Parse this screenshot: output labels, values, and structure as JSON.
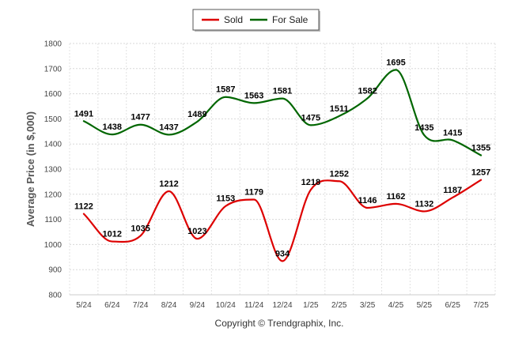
{
  "chart_data": {
    "type": "line",
    "title": "",
    "xlabel": "",
    "ylabel": "Average Price (in $,000)",
    "categories": [
      "5/24",
      "6/24",
      "7/24",
      "8/24",
      "9/24",
      "10/24",
      "11/24",
      "12/24",
      "1/25",
      "2/25",
      "3/25",
      "4/25",
      "5/25",
      "6/25",
      "7/25"
    ],
    "ylim": [
      800,
      1800
    ],
    "yticks": [
      "800",
      "900",
      "1000",
      "1100",
      "1200",
      "1300",
      "1400",
      "1500",
      "1600",
      "1700",
      "1800"
    ],
    "grid": true,
    "legend_position": "top-center",
    "series": [
      {
        "name": "Sold",
        "color": "#dd0000",
        "values": [
          1122,
          1012,
          1035,
          1212,
          1023,
          1153,
          1179,
          934,
          1218,
          1252,
          1146,
          1162,
          1132,
          1187,
          1257
        ]
      },
      {
        "name": "For Sale",
        "color": "#006600",
        "values": [
          1491,
          1438,
          1477,
          1437,
          1489,
          1587,
          1563,
          1581,
          1475,
          1511,
          1582,
          1695,
          1435,
          1415,
          1355
        ]
      }
    ],
    "footer": "Copyright © Trendgraphix, Inc."
  }
}
